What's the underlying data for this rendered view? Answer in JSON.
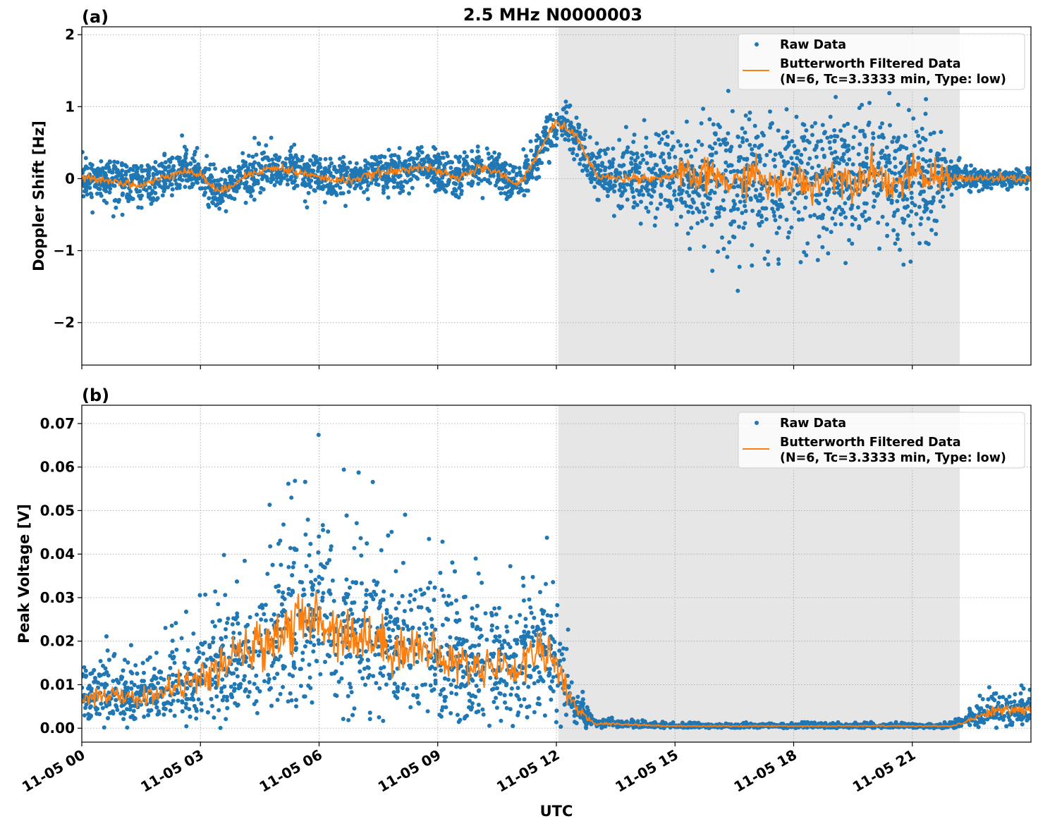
{
  "title": "2.5 MHz N0000003",
  "chart_data": [
    {
      "type": "scatter",
      "panel_label": "(a)",
      "ylabel": "Doppler Shift [Hz]",
      "xlabel": "",
      "xlim_hours": [
        0,
        24
      ],
      "ylim": [
        -2.59,
        2.11
      ],
      "yticks": [
        2,
        1,
        0,
        -1,
        -2
      ],
      "ytick_labels": [
        "2",
        "1",
        "0",
        "−1",
        "−2"
      ],
      "grid": true,
      "shaded_region_hours": [
        12.05,
        22.2
      ],
      "legend": {
        "placement": "top-right",
        "raw": "Raw Data",
        "filtered_line1": "Butterworth Filtered Data",
        "filtered_line2": "(N=6, Tc=3.3333 min, Type: low)"
      },
      "x_hours": [
        0,
        0.5,
        1,
        1.5,
        2,
        2.5,
        3,
        3.5,
        4,
        4.5,
        5,
        5.5,
        6,
        6.5,
        7,
        7.5,
        8,
        8.5,
        9,
        9.5,
        10,
        10.5,
        11,
        11.5,
        12,
        12.5,
        13,
        13.5,
        14,
        14.5,
        15,
        15.5,
        16,
        16.5,
        17,
        17.5,
        18,
        18.5,
        19,
        19.5,
        20,
        20.5,
        21,
        21.5,
        22,
        22.5,
        23,
        23.5,
        24
      ],
      "filtered": [
        0.0,
        0.0,
        -0.05,
        -0.1,
        0.0,
        0.12,
        0.05,
        -0.2,
        0.0,
        0.12,
        0.15,
        0.08,
        0.02,
        -0.03,
        0.0,
        0.08,
        0.1,
        0.18,
        0.1,
        0.0,
        0.15,
        0.1,
        -0.1,
        0.3,
        0.8,
        0.6,
        0.05,
        0.0,
        0.02,
        0.0,
        0.05,
        0.0,
        0.05,
        -0.1,
        0.1,
        -0.15,
        0.0,
        -0.1,
        0.1,
        -0.05,
        0.15,
        -0.1,
        0.05,
        0.0,
        0.02,
        0.0,
        0.0,
        0.0,
        0.0
      ],
      "raw_spread": [
        0.3,
        0.3,
        0.35,
        0.4,
        0.3,
        0.35,
        0.35,
        0.4,
        0.3,
        0.35,
        0.35,
        0.3,
        0.3,
        0.3,
        0.3,
        0.3,
        0.35,
        0.3,
        0.3,
        0.3,
        0.3,
        0.3,
        0.3,
        0.35,
        0.35,
        0.3,
        0.4,
        0.5,
        0.5,
        0.5,
        0.6,
        0.8,
        1.0,
        1.0,
        1.0,
        1.05,
        1.05,
        1.0,
        1.0,
        1.0,
        1.0,
        1.0,
        1.0,
        0.9,
        0.25,
        0.15,
        0.15,
        0.15,
        0.15
      ],
      "colors": {
        "raw": "#1f77b4",
        "filtered": "#ff7f0e",
        "shade": "#e6e6e6"
      }
    },
    {
      "type": "scatter",
      "panel_label": "(b)",
      "ylabel": "Peak Voltage [V]",
      "xlabel": "UTC",
      "xlim_hours": [
        0,
        24
      ],
      "ylim": [
        -0.0032,
        0.0742
      ],
      "yticks": [
        0.0,
        0.01,
        0.02,
        0.03,
        0.04,
        0.05,
        0.06,
        0.07
      ],
      "ytick_labels": [
        "0.00",
        "0.01",
        "0.02",
        "0.03",
        "0.04",
        "0.05",
        "0.06",
        "0.07"
      ],
      "xticks_hours": [
        0,
        3,
        6,
        9,
        12,
        15,
        18,
        21
      ],
      "xtick_labels": [
        "11-05 00",
        "11-05 03",
        "11-05 06",
        "11-05 09",
        "11-05 12",
        "11-05 15",
        "11-05 18",
        "11-05 21"
      ],
      "grid": true,
      "shaded_region_hours": [
        12.05,
        22.2
      ],
      "legend": {
        "placement": "top-right",
        "raw": "Raw Data",
        "filtered_line1": "Butterworth Filtered Data",
        "filtered_line2": "(N=6, Tc=3.3333 min, Type: low)"
      },
      "x_hours": [
        0,
        0.5,
        1,
        1.5,
        2,
        2.5,
        3,
        3.5,
        4,
        4.5,
        5,
        5.5,
        6,
        6.5,
        7,
        7.5,
        8,
        8.5,
        9,
        9.5,
        10,
        10.5,
        11,
        11.5,
        12,
        12.5,
        13,
        13.5,
        14,
        14.5,
        15,
        15.5,
        16,
        16.5,
        17,
        17.5,
        18,
        18.5,
        19,
        19.5,
        20,
        20.5,
        21,
        21.5,
        22,
        22.5,
        23,
        23.5,
        24
      ],
      "filtered": [
        0.007,
        0.008,
        0.007,
        0.007,
        0.008,
        0.01,
        0.011,
        0.014,
        0.017,
        0.019,
        0.022,
        0.024,
        0.025,
        0.023,
        0.021,
        0.02,
        0.018,
        0.019,
        0.016,
        0.015,
        0.014,
        0.015,
        0.013,
        0.019,
        0.015,
        0.004,
        0.001,
        0.001,
        0.0008,
        0.0006,
        0.0005,
        0.0005,
        0.0005,
        0.0005,
        0.0005,
        0.0005,
        0.0005,
        0.0005,
        0.0005,
        0.0005,
        0.0005,
        0.0005,
        0.0005,
        0.0005,
        0.0005,
        0.002,
        0.004,
        0.004,
        0.0045
      ],
      "colors": {
        "raw": "#1f77b4",
        "filtered": "#ff7f0e",
        "shade": "#e6e6e6"
      }
    }
  ]
}
